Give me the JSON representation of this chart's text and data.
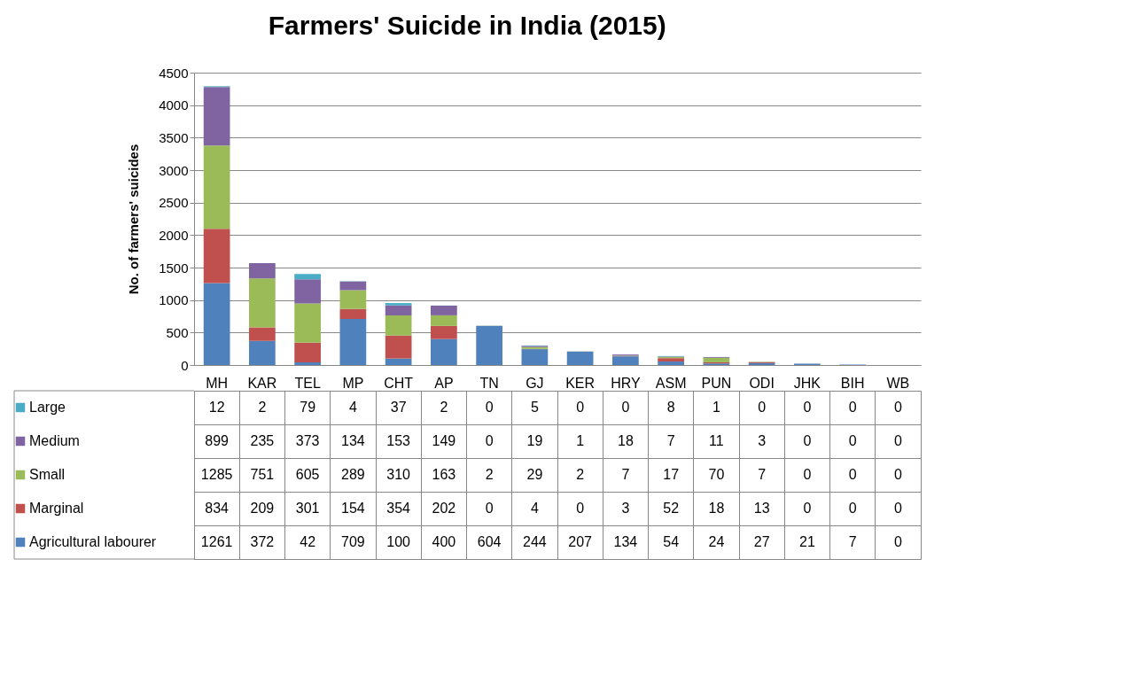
{
  "chart_data": {
    "type": "bar",
    "title": "Farmers' Suicide in India (2015)",
    "ylabel": "No. of farmers' suicides",
    "categories": [
      "MH",
      "KAR",
      "TEL",
      "MP",
      "CHT",
      "AP",
      "TN",
      "GJ",
      "KER",
      "HRY",
      "ASM",
      "PUN",
      "ODI",
      "JHK",
      "BIH",
      "WB"
    ],
    "stacked": true,
    "series": [
      {
        "name": "Agricultural labourer",
        "color": "#4f81bd",
        "values": [
          1261,
          372,
          42,
          709,
          100,
          400,
          604,
          244,
          207,
          134,
          54,
          24,
          27,
          21,
          7,
          0
        ]
      },
      {
        "name": "Marginal",
        "color": "#c0504d",
        "values": [
          834,
          209,
          301,
          154,
          354,
          202,
          0,
          4,
          0,
          3,
          52,
          18,
          13,
          0,
          0,
          0
        ]
      },
      {
        "name": "Small",
        "color": "#9bbb59",
        "values": [
          1285,
          751,
          605,
          289,
          310,
          163,
          2,
          29,
          2,
          7,
          17,
          70,
          7,
          0,
          0,
          0
        ]
      },
      {
        "name": "Medium",
        "color": "#8064a2",
        "values": [
          899,
          235,
          373,
          134,
          153,
          149,
          0,
          19,
          1,
          18,
          7,
          11,
          3,
          0,
          0,
          0
        ]
      },
      {
        "name": "Large",
        "color": "#4bacc6",
        "values": [
          12,
          2,
          79,
          4,
          37,
          2,
          0,
          5,
          0,
          0,
          8,
          1,
          0,
          0,
          0,
          0
        ]
      }
    ],
    "ylim": [
      0,
      4500
    ],
    "yticks": [
      0,
      500,
      1000,
      1500,
      2000,
      2500,
      3000,
      3500,
      4000,
      4500
    ],
    "grid": "y",
    "legend": "bottom",
    "data_labels": true
  }
}
